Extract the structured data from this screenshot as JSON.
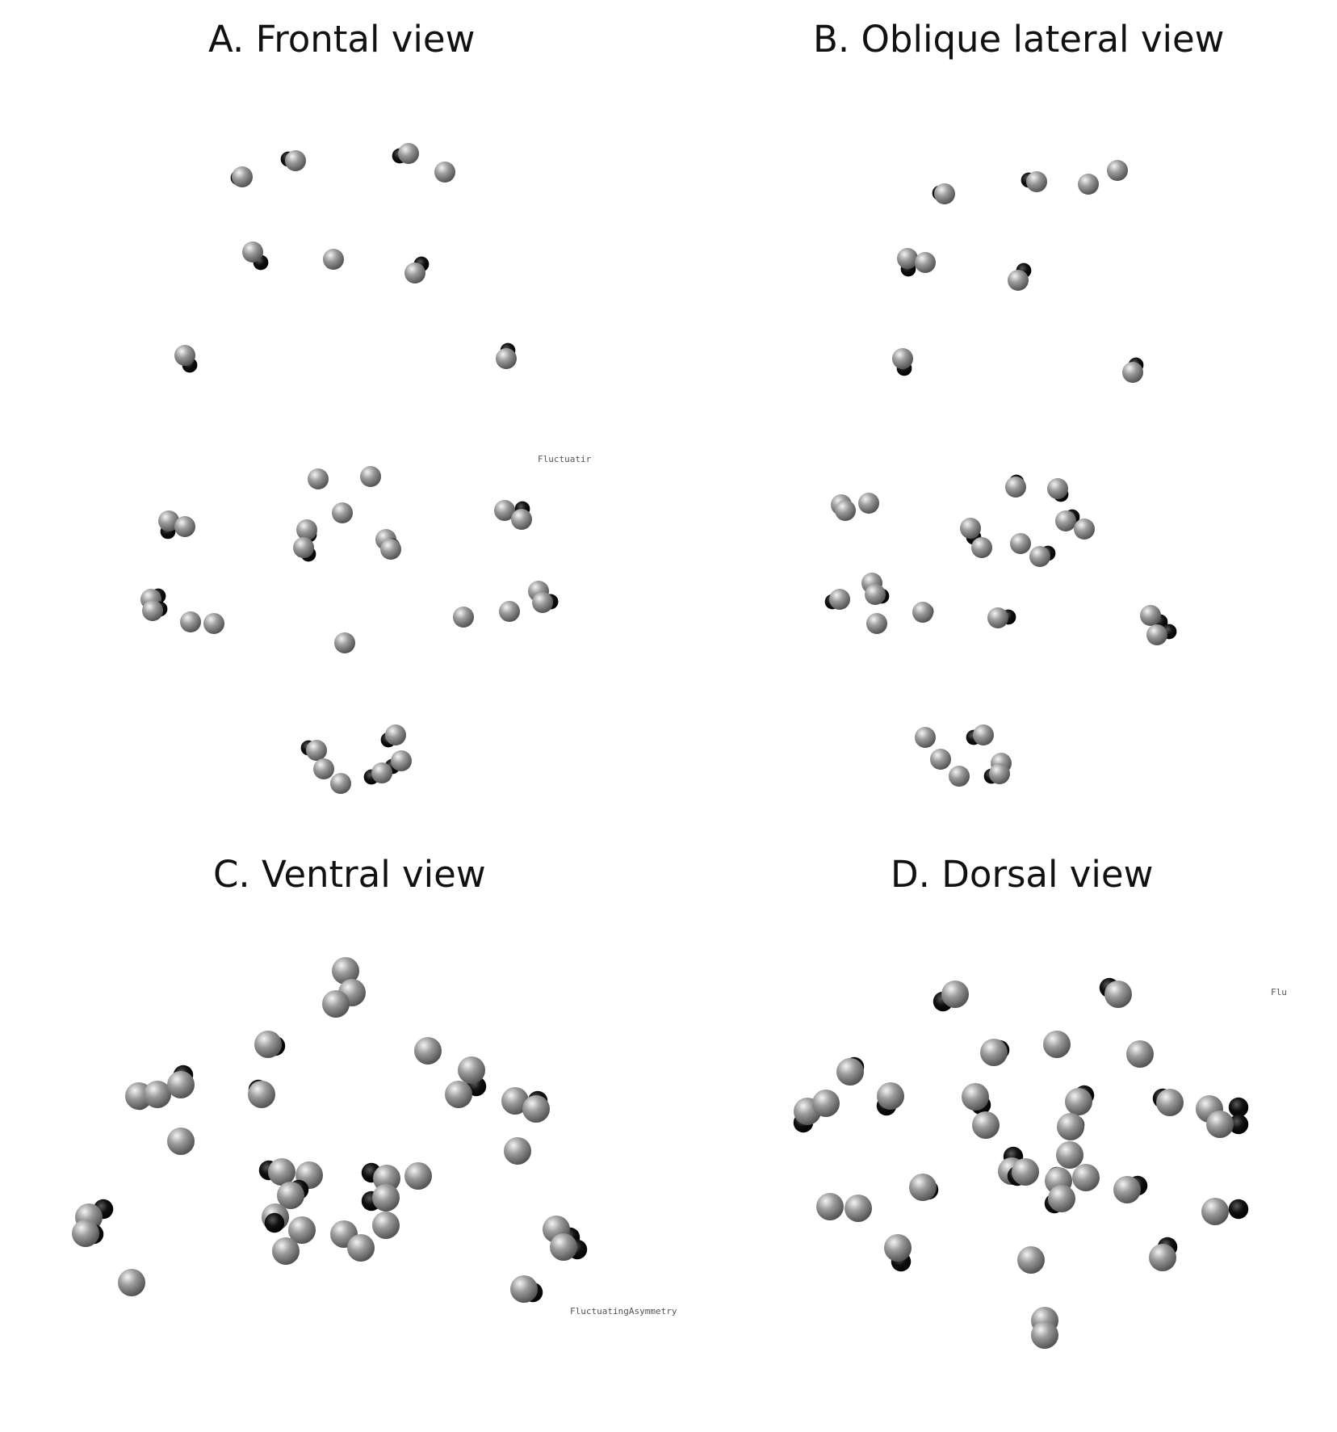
{
  "figure": {
    "panels": [
      {
        "id": "A",
        "title": "A. Frontal view",
        "stamp": "Fluctuatir"
      },
      {
        "id": "B",
        "title": "B. Oblique lateral view",
        "stamp": ""
      },
      {
        "id": "C",
        "title": "C. Ventral view",
        "stamp": "FluctuatingAsymmetry"
      },
      {
        "id": "D",
        "title": "D. Dorsal view",
        "stamp": "Flu"
      }
    ],
    "legend": {
      "items": [
        {
          "name": "grey-sphere",
          "color": "#9a9a9a"
        },
        {
          "name": "black-sphere",
          "color": "#111111"
        }
      ]
    },
    "colors": {
      "grey_sphere": "#9a9a9a",
      "black_sphere": "#111111",
      "background": "#ffffff"
    }
  }
}
